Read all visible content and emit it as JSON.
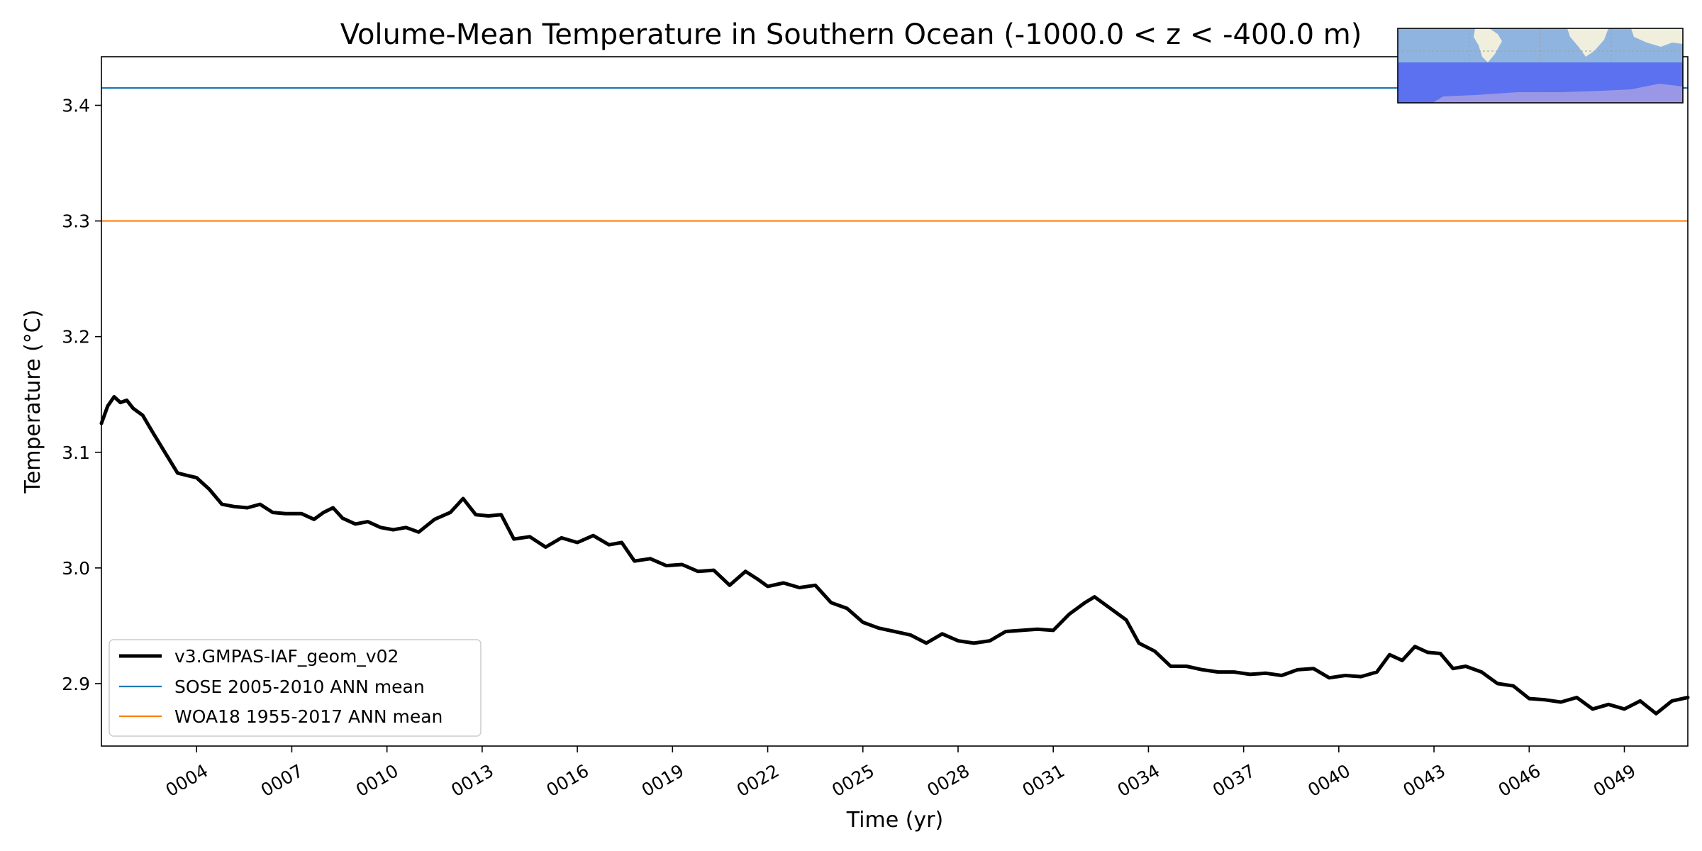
{
  "chart_data": {
    "type": "line",
    "title": "Volume-Mean Temperature in Southern Ocean (-1000.0 < z < -400.0 m)",
    "xlabel": "Time (yr)",
    "ylabel": "Temperature (°C)",
    "xlim": [
      1.0,
      51.0
    ],
    "ylim": [
      2.846,
      3.442
    ],
    "x_ticks": [
      {
        "value": 4,
        "label": "0004"
      },
      {
        "value": 7,
        "label": "0007"
      },
      {
        "value": 10,
        "label": "0010"
      },
      {
        "value": 13,
        "label": "0013"
      },
      {
        "value": 16,
        "label": "0016"
      },
      {
        "value": 19,
        "label": "0019"
      },
      {
        "value": 22,
        "label": "0022"
      },
      {
        "value": 25,
        "label": "0025"
      },
      {
        "value": 28,
        "label": "0028"
      },
      {
        "value": 31,
        "label": "0031"
      },
      {
        "value": 34,
        "label": "0034"
      },
      {
        "value": 37,
        "label": "0037"
      },
      {
        "value": 40,
        "label": "0040"
      },
      {
        "value": 43,
        "label": "0043"
      },
      {
        "value": 46,
        "label": "0046"
      },
      {
        "value": 49,
        "label": "0049"
      }
    ],
    "y_ticks": [
      {
        "value": 2.9,
        "label": "2.9"
      },
      {
        "value": 3.0,
        "label": "3.0"
      },
      {
        "value": 3.1,
        "label": "3.1"
      },
      {
        "value": 3.2,
        "label": "3.2"
      },
      {
        "value": 3.3,
        "label": "3.3"
      },
      {
        "value": 3.4,
        "label": "3.4"
      }
    ],
    "legend_position": "lower-left",
    "series": [
      {
        "name": "v3.GMPAS-IAF_geom_v02",
        "color": "#000000",
        "style": "thick",
        "x": [
          1.0,
          1.2,
          1.4,
          1.6,
          1.8,
          2.0,
          2.3,
          2.6,
          3.0,
          3.4,
          3.7,
          4.0,
          4.4,
          4.8,
          5.2,
          5.6,
          6.0,
          6.4,
          6.8,
          7.3,
          7.7,
          8.0,
          8.3,
          8.6,
          9.0,
          9.4,
          9.8,
          10.2,
          10.6,
          11.0,
          11.5,
          12.0,
          12.4,
          12.8,
          13.2,
          13.6,
          14.0,
          14.5,
          15.0,
          15.5,
          16.0,
          16.5,
          17.0,
          17.4,
          17.8,
          18.3,
          18.8,
          19.3,
          19.8,
          20.3,
          20.8,
          21.3,
          21.7,
          22.0,
          22.5,
          23.0,
          23.5,
          24.0,
          24.5,
          25.0,
          25.5,
          26.0,
          26.5,
          27.0,
          27.5,
          28.0,
          28.5,
          29.0,
          29.5,
          30.0,
          30.5,
          31.0,
          31.5,
          32.0,
          32.3,
          32.8,
          33.3,
          33.7,
          34.2,
          34.7,
          35.2,
          35.7,
          36.2,
          36.7,
          37.2,
          37.7,
          38.2,
          38.7,
          39.2,
          39.7,
          40.2,
          40.7,
          41.2,
          41.6,
          42.0,
          42.4,
          42.8,
          43.2,
          43.6,
          44.0,
          44.5,
          45.0,
          45.5,
          46.0,
          46.5,
          47.0,
          47.5,
          48.0,
          48.5,
          49.0,
          49.5,
          50.0,
          50.5,
          51.0
        ],
        "values": [
          3.125,
          3.14,
          3.148,
          3.143,
          3.145,
          3.138,
          3.132,
          3.118,
          3.1,
          3.082,
          3.08,
          3.078,
          3.068,
          3.055,
          3.053,
          3.052,
          3.055,
          3.048,
          3.047,
          3.047,
          3.042,
          3.048,
          3.052,
          3.043,
          3.038,
          3.04,
          3.035,
          3.033,
          3.035,
          3.031,
          3.042,
          3.048,
          3.06,
          3.046,
          3.045,
          3.046,
          3.025,
          3.027,
          3.018,
          3.026,
          3.022,
          3.028,
          3.02,
          3.022,
          3.006,
          3.008,
          3.002,
          3.003,
          2.997,
          2.998,
          2.985,
          2.997,
          2.99,
          2.984,
          2.987,
          2.983,
          2.985,
          2.97,
          2.965,
          2.953,
          2.948,
          2.945,
          2.942,
          2.935,
          2.943,
          2.937,
          2.935,
          2.937,
          2.945,
          2.946,
          2.947,
          2.946,
          2.96,
          2.97,
          2.975,
          2.965,
          2.955,
          2.935,
          2.928,
          2.915,
          2.915,
          2.912,
          2.91,
          2.91,
          2.908,
          2.909,
          2.907,
          2.912,
          2.913,
          2.905,
          2.907,
          2.906,
          2.91,
          2.925,
          2.92,
          2.932,
          2.927,
          2.926,
          2.913,
          2.915,
          2.91,
          2.9,
          2.898,
          2.887,
          2.886,
          2.884,
          2.888,
          2.878,
          2.882,
          2.878,
          2.885,
          2.874,
          2.885,
          2.888
        ]
      },
      {
        "name": "SOSE 2005-2010 ANN mean",
        "color": "#1f77b4",
        "style": "thin",
        "x": [
          1.0,
          51.0
        ],
        "values": [
          3.415,
          3.415
        ]
      },
      {
        "name": "WOA18 1955-2017 ANN mean",
        "color": "#ff7f0e",
        "style": "thin",
        "x": [
          1.0,
          51.0
        ],
        "values": [
          3.3,
          3.3
        ]
      }
    ],
    "inset_map": {
      "description": "Southern Ocean region map",
      "land_color": "#f0eedc",
      "ocean_color": "#8fb4e0",
      "region_color": "#5a6ef0"
    }
  }
}
